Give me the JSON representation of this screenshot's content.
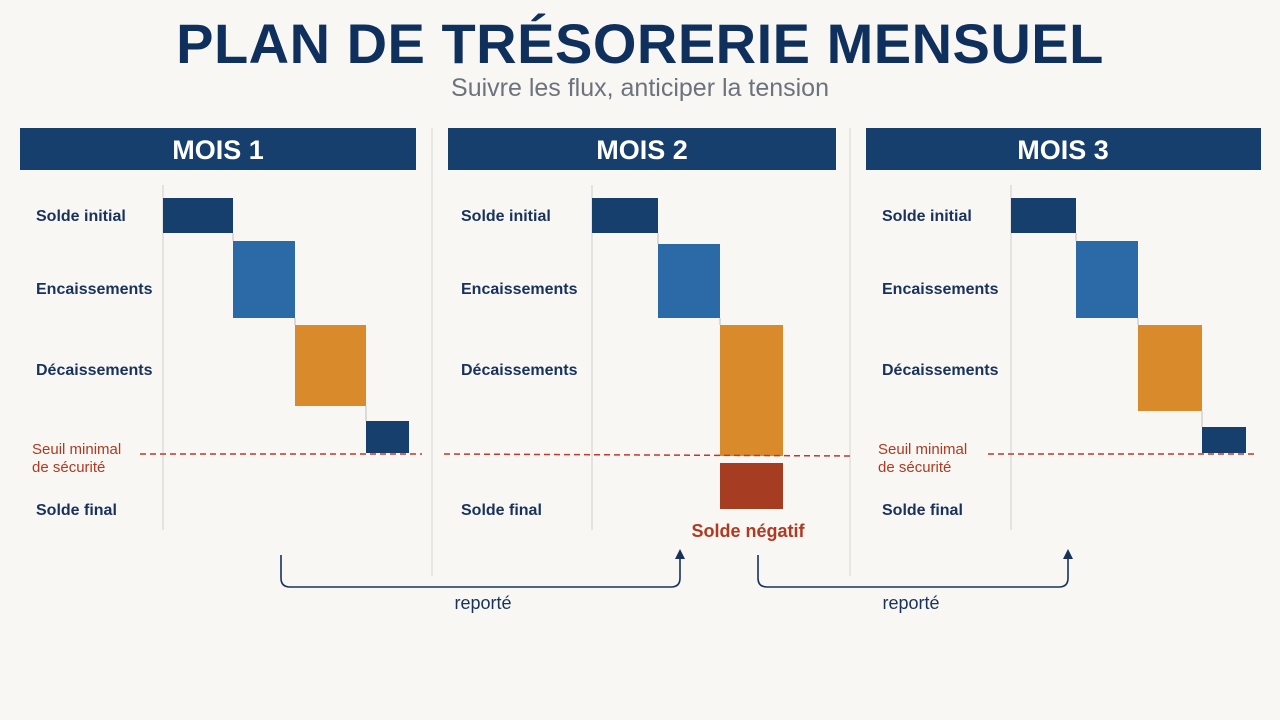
{
  "header": {
    "title": "PLAN DE TRÉSORERIE MENSUEL",
    "subtitle": "Suivre les flux, anticiper la tension"
  },
  "row_labels": {
    "opening": "Solde initial",
    "receipts": "Encaissements",
    "disbursements": "Décaissements",
    "threshold": [
      "Seuil minimal",
      "de sécurité"
    ],
    "closing": "Solde final"
  },
  "months": [
    {
      "label": "MOIS 1",
      "shows_threshold_label": true,
      "negative_label": ""
    },
    {
      "label": "MOIS 2",
      "shows_threshold_label": false,
      "negative_label": "Solde négatif"
    },
    {
      "label": "MOIS 3",
      "shows_threshold_label": true,
      "negative_label": ""
    }
  ],
  "carry_label": "reporté",
  "colors": {
    "navy": "#173f6e",
    "blue": "#2b6aa6",
    "orange": "#d98b2c",
    "negative": "#a63c22",
    "threshold": "#c0392b",
    "header_bg": "#173f6e"
  }
}
